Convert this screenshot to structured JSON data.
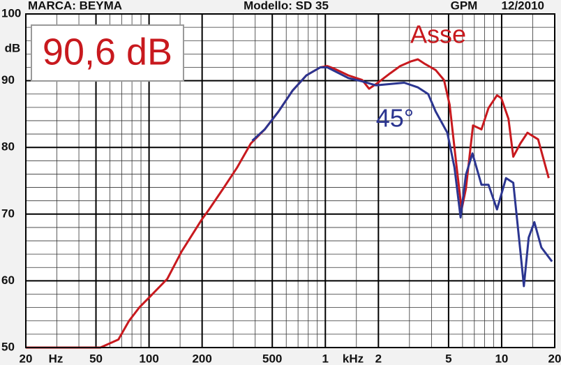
{
  "chart_data": {
    "type": "line",
    "title_left": "MARCA: BEYMA",
    "title_center": "Modello: SD 35",
    "title_right": "GPM",
    "date": "12/2010",
    "callout": "90,6 dB",
    "y_label": "dB",
    "x_unit_low": "Hz",
    "x_unit_high": "kHz",
    "xscale": "log",
    "grid": true,
    "xlim": [
      20,
      20000
    ],
    "ylim": [
      50,
      100
    ],
    "xticks": [
      20,
      50,
      100,
      200,
      500,
      {
        "value": 1000,
        "label": "1"
      },
      {
        "value": 2000,
        "label": "2"
      },
      {
        "value": 5000,
        "label": "5"
      },
      {
        "value": 10000,
        "label": "10"
      },
      {
        "value": 20000,
        "label": "20"
      }
    ],
    "xminor": [
      30,
      40,
      60,
      70,
      80,
      90,
      150,
      300,
      400,
      600,
      700,
      800,
      900,
      1500,
      3000,
      4000,
      6000,
      7000,
      8000,
      9000,
      15000
    ],
    "yticks": [
      50,
      60,
      70,
      80,
      90,
      100
    ],
    "yminor": [
      52,
      54,
      56,
      58,
      62,
      64,
      66,
      68,
      72,
      74,
      76,
      78,
      82,
      84,
      86,
      88,
      92,
      94,
      96,
      98
    ],
    "series": [
      {
        "name": "Asse",
        "color": "#c8191e",
        "x": [
          20,
          53,
          67,
          77,
          88,
          101,
          127,
          153,
          198,
          219,
          263,
          316,
          378,
          453,
          543,
          651,
          781,
          936,
          1026,
          1124,
          1350,
          1617,
          1770,
          1940,
          2330,
          2660,
          3060,
          3350,
          3680,
          4220,
          4710,
          5070,
          5560,
          5930,
          6270,
          6880,
          7680,
          8420,
          9410,
          9950,
          10930,
          11640,
          12770,
          14010,
          16100,
          18500
        ],
        "values": [
          50,
          50,
          51.2,
          54,
          56,
          57.6,
          60.3,
          64.4,
          69.1,
          70.7,
          73.8,
          77,
          80.6,
          82.7,
          85.4,
          88.5,
          90.8,
          92,
          92.2,
          91.8,
          90.8,
          90.1,
          88.8,
          89.5,
          91.1,
          92.2,
          92.9,
          93.2,
          92.5,
          91.6,
          90.1,
          86.4,
          77,
          70.7,
          73.8,
          83.3,
          82.7,
          85.9,
          87.8,
          87.4,
          84.3,
          78.6,
          80.6,
          82.2,
          81.2,
          75.4
        ]
      },
      {
        "name": "45°",
        "color": "#2b3590",
        "x": [
          385,
          453,
          543,
          651,
          781,
          936,
          1026,
          1350,
          1617,
          1940,
          2330,
          2800,
          3350,
          3830,
          4220,
          4920,
          5400,
          5850,
          6270,
          6830,
          7680,
          8420,
          9410,
          10590,
          11640,
          12770,
          13370,
          14240,
          15330,
          16800,
          19300
        ],
        "values": [
          81,
          82.7,
          85.4,
          88.5,
          90.8,
          92,
          92,
          90.4,
          89.9,
          89.3,
          89.5,
          89.7,
          89,
          88,
          85.4,
          82.2,
          77,
          69.5,
          75.9,
          79.1,
          74.4,
          74.4,
          70.7,
          75.4,
          74.7,
          64.4,
          59.2,
          66.5,
          68.8,
          65,
          62.9
        ]
      }
    ]
  }
}
